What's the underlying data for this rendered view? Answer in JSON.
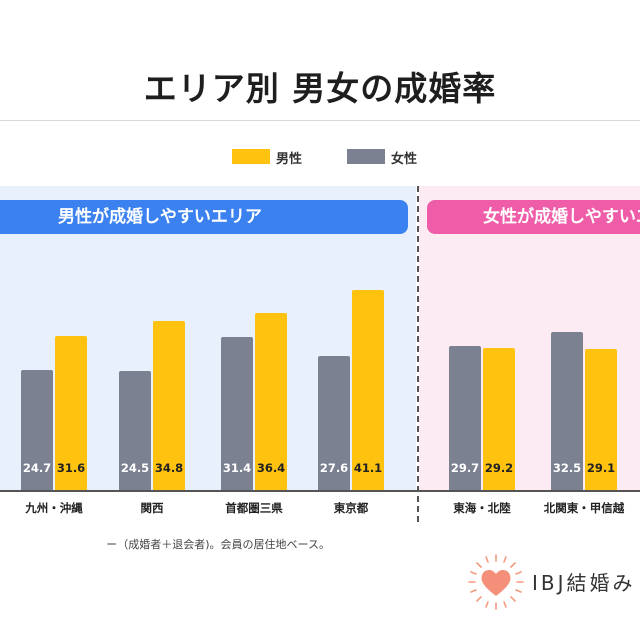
{
  "title": "エリア別 男女の成婚率",
  "legend": [
    {
      "label": "男性",
      "color": "#ffc20e"
    },
    {
      "label": "女性",
      "color": "#7b8190"
    }
  ],
  "colors": {
    "male": "#ffc20e",
    "female": "#7b8190",
    "male_panel_header": "#3b82f0",
    "male_panel_bg": "#e8f0fb",
    "female_panel_header": "#ef5da8",
    "female_panel_bg": "#fdebf4"
  },
  "panels": {
    "male_higher": {
      "label": "男性が成婚しやすいエリア"
    },
    "female_higher": {
      "label": "女性が成婚しやすいエ"
    }
  },
  "footnote": "ー（成婚者＋退会者)。会員の居住地ベース。",
  "logo": {
    "text": "IBJ結婚み"
  },
  "chart_data": {
    "type": "bar",
    "categories": [
      "九州・沖縄",
      "関西",
      "首都圏三県",
      "東京都",
      "東海・北陸",
      "北関東・甲信越"
    ],
    "groups": [
      {
        "label": "男性が成婚しやすいエリア",
        "categories": [
          "九州・沖縄",
          "関西",
          "首都圏三県",
          "東京都"
        ]
      },
      {
        "label": "女性が成婚しやすいエ",
        "categories": [
          "東海・北陸",
          "北関東・甲信越"
        ]
      }
    ],
    "series": [
      {
        "name": "女性",
        "values": [
          24.7,
          24.5,
          31.4,
          27.6,
          29.7,
          32.5
        ]
      },
      {
        "name": "男性",
        "values": [
          31.6,
          34.8,
          36.4,
          41.1,
          29.2,
          29.1
        ]
      }
    ],
    "value_labels": {
      "女性": [
        "24.7",
        "24.5",
        "31.4",
        "27.6",
        "29.7",
        "32.5"
      ],
      "男性": [
        "31.6",
        "34.8",
        "36.4",
        "41.1",
        "29.2",
        "29.1"
      ]
    },
    "title": "エリア別 男女の成婚率",
    "xlabel": "",
    "ylabel": "",
    "legend_position": "top-center",
    "grid": false
  }
}
